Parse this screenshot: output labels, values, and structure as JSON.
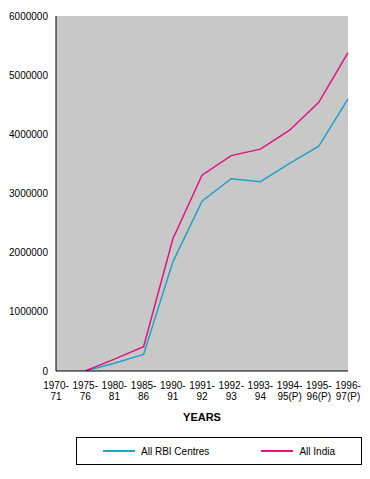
{
  "chart_data": {
    "type": "line",
    "x_label": "YEARS",
    "categories": [
      "1970-71",
      "1975-76",
      "1980-81",
      "1985-86",
      "1990-91",
      "1991-92",
      "1992-93",
      "1993-94",
      "1994-95(P)",
      "1995-96(P)",
      "1996-97(P)"
    ],
    "series": [
      {
        "name": "All RBI Centres",
        "color": "#1fa3c8",
        "values": [
          null,
          0,
          130000,
          280000,
          1840000,
          2870000,
          3250000,
          3200000,
          3510000,
          3800000,
          4600000
        ]
      },
      {
        "name": "All India",
        "color": "#e0157f",
        "values": [
          null,
          0,
          200000,
          410000,
          2230000,
          3310000,
          3640000,
          3750000,
          4070000,
          4540000,
          5380000
        ]
      }
    ],
    "ylim": [
      0,
      6000000
    ],
    "yticks": [
      0,
      1000000,
      2000000,
      3000000,
      4000000,
      5000000,
      6000000
    ],
    "grid": false,
    "legend": "bottom"
  }
}
